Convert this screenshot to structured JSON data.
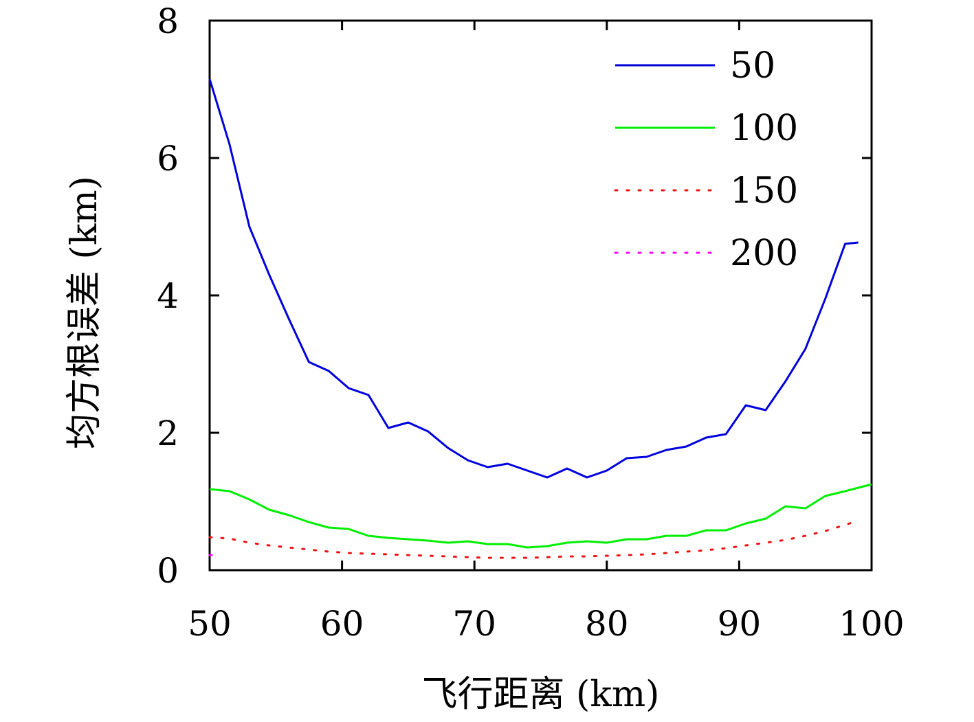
{
  "chart_data": {
    "type": "line",
    "xlabel": "飞行距离 (km)",
    "ylabel": "均方根误差 (km)",
    "xlim": [
      50,
      100
    ],
    "ylim": [
      0,
      8
    ],
    "xticks": [
      50,
      60,
      70,
      80,
      90,
      100
    ],
    "yticks": [
      0,
      2,
      4,
      6,
      8
    ],
    "x_tick_labels": [
      "50",
      "60",
      "70",
      "80",
      "90",
      "100"
    ],
    "y_tick_labels": [
      "0",
      "2",
      "4",
      "6",
      "8"
    ],
    "grid": false,
    "legend_position": "top-right",
    "series": [
      {
        "name": "50",
        "color": "#0000dd",
        "style": "solid",
        "x": [
          50,
          51.5,
          53,
          54.5,
          56,
          57.5,
          59,
          60.5,
          62,
          63.5,
          65,
          66.5,
          68,
          69.5,
          71,
          72.5,
          74,
          75.5,
          77,
          78.5,
          80,
          81.5,
          83,
          84.5,
          86,
          87.5,
          89,
          90.5,
          92,
          93.5,
          95,
          96.5,
          98,
          99
        ],
        "y": [
          7.15,
          6.2,
          5.0,
          4.3,
          3.65,
          3.03,
          2.9,
          2.65,
          2.55,
          2.07,
          2.15,
          2.02,
          1.78,
          1.6,
          1.5,
          1.55,
          1.45,
          1.35,
          1.48,
          1.35,
          1.45,
          1.63,
          1.65,
          1.75,
          1.8,
          1.93,
          1.98,
          2.4,
          2.33,
          2.75,
          3.22,
          3.95,
          4.75,
          4.77
        ]
      },
      {
        "name": "100",
        "color": "#00ee00",
        "style": "solid",
        "x": [
          50,
          51.5,
          53,
          54.5,
          56,
          57.5,
          59,
          60.5,
          62,
          63.5,
          65,
          66.5,
          68,
          69.5,
          71,
          72.5,
          74,
          75.5,
          77,
          78.5,
          80,
          81.5,
          83,
          84.5,
          86,
          87.5,
          89,
          90.5,
          92,
          93.5,
          95,
          96.5,
          98,
          100
        ],
        "y": [
          1.18,
          1.15,
          1.03,
          0.88,
          0.8,
          0.7,
          0.62,
          0.6,
          0.5,
          0.47,
          0.45,
          0.43,
          0.4,
          0.42,
          0.38,
          0.38,
          0.33,
          0.35,
          0.4,
          0.42,
          0.4,
          0.45,
          0.45,
          0.5,
          0.5,
          0.58,
          0.58,
          0.68,
          0.75,
          0.93,
          0.9,
          1.08,
          1.15,
          1.25
        ]
      },
      {
        "name": "150",
        "color": "#ee1111",
        "style": "dotted",
        "x": [
          50,
          51.5,
          53,
          54.5,
          56,
          57.5,
          59,
          60.5,
          62,
          63.5,
          65,
          66.5,
          68,
          69.5,
          71,
          72.5,
          74,
          75.5,
          77,
          78.5,
          80,
          81.5,
          83,
          84.5,
          86,
          87.5,
          89,
          90.5,
          92,
          93.5,
          95,
          96.5,
          98,
          99
        ],
        "y": [
          0.48,
          0.46,
          0.4,
          0.36,
          0.33,
          0.3,
          0.27,
          0.25,
          0.24,
          0.23,
          0.22,
          0.21,
          0.2,
          0.19,
          0.18,
          0.18,
          0.18,
          0.19,
          0.2,
          0.2,
          0.21,
          0.22,
          0.23,
          0.25,
          0.27,
          0.29,
          0.32,
          0.36,
          0.4,
          0.44,
          0.5,
          0.57,
          0.66,
          0.72
        ]
      },
      {
        "name": "200",
        "color": "#ff00ff",
        "style": "dotted",
        "x": [
          50,
          50.3
        ],
        "y": [
          0.22,
          0.22
        ]
      }
    ]
  }
}
